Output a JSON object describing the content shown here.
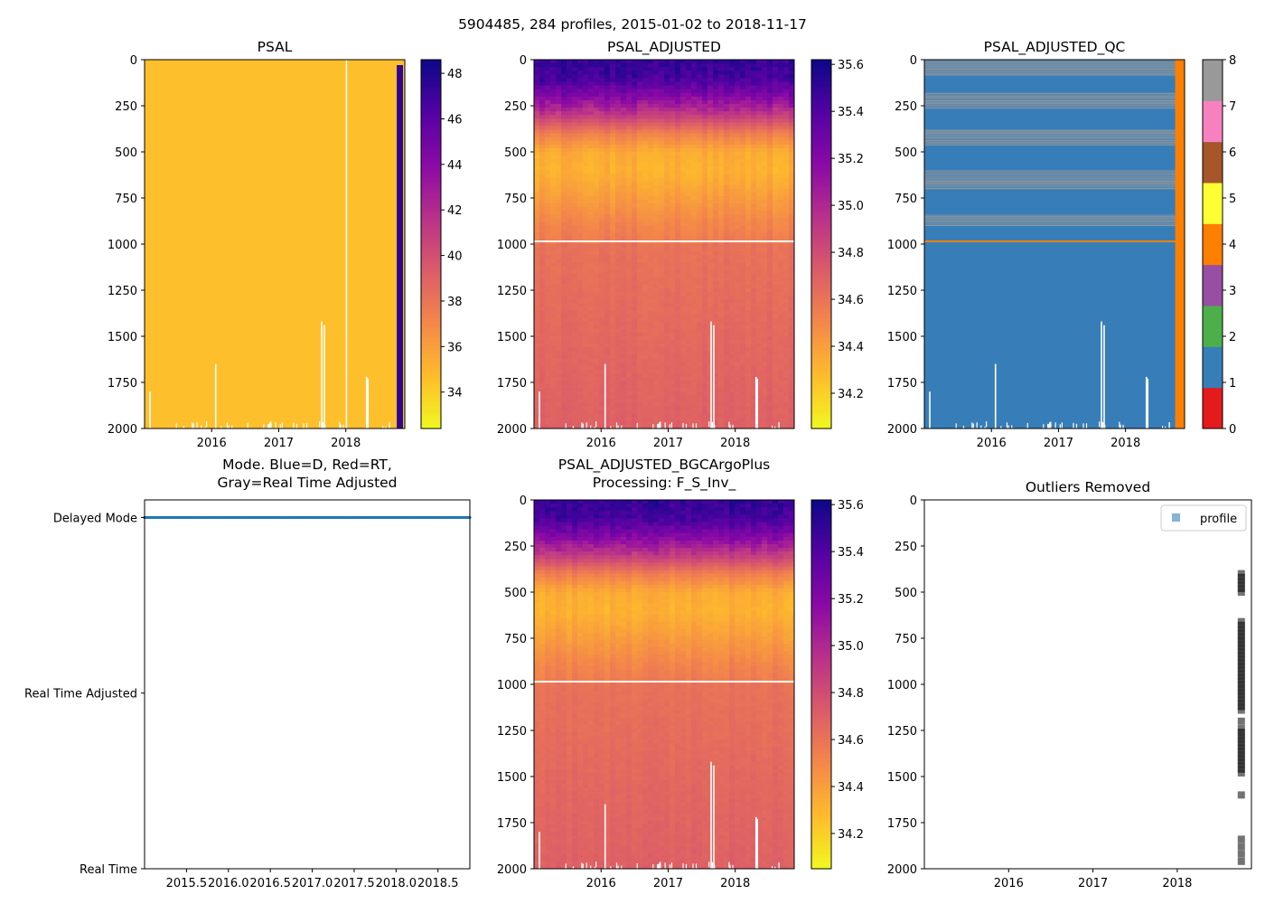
{
  "figure": {
    "suptitle": "5904485, 284 profiles, 2015-01-02 to 2018-11-17"
  },
  "chart_data": [
    {
      "id": "psal",
      "type": "heatmap",
      "title": "PSAL",
      "x_ticks": [
        "2016",
        "2017",
        "2018"
      ],
      "x_tick_values": [
        2016,
        2017,
        2018
      ],
      "xlim": [
        2015.0,
        2018.88
      ],
      "y_ticks": [
        "0",
        "250",
        "500",
        "750",
        "1000",
        "1250",
        "1500",
        "1750",
        "2000"
      ],
      "y_tick_values": [
        0,
        250,
        500,
        750,
        1000,
        1250,
        1500,
        1750,
        2000
      ],
      "ylim": [
        2000,
        0
      ],
      "colorbar": {
        "cmap": "plasma_r",
        "range": [
          32.4,
          48.6
        ],
        "ticks": [
          "34",
          "36",
          "38",
          "40",
          "42",
          "44",
          "46",
          "48"
        ],
        "tick_values": [
          34,
          36,
          38,
          40,
          42,
          44,
          46,
          48
        ]
      },
      "field": {
        "base_value": 34.6,
        "anomaly_value": 47.5,
        "anomaly_start_year": 2018.76
      }
    },
    {
      "id": "psal_adjusted",
      "type": "heatmap",
      "title": "PSAL_ADJUSTED",
      "x_ticks": [
        "2016",
        "2017",
        "2018"
      ],
      "x_tick_values": [
        2016,
        2017,
        2018
      ],
      "xlim": [
        2015.0,
        2018.88
      ],
      "y_ticks": [
        "0",
        "250",
        "500",
        "750",
        "1000",
        "1250",
        "1500",
        "1750",
        "2000"
      ],
      "y_tick_values": [
        0,
        250,
        500,
        750,
        1000,
        1250,
        1500,
        1750,
        2000
      ],
      "ylim": [
        2000,
        0
      ],
      "colorbar": {
        "cmap": "plasma_r",
        "range": [
          34.05,
          35.62
        ],
        "ticks": [
          "34.2",
          "34.4",
          "34.6",
          "34.8",
          "35.0",
          "35.2",
          "35.4",
          "35.6"
        ],
        "tick_values": [
          34.2,
          34.4,
          34.6,
          34.8,
          35.0,
          35.2,
          35.4,
          35.6
        ]
      },
      "depth_profile": [
        [
          0,
          35.5
        ],
        [
          100,
          35.45
        ],
        [
          200,
          35.2
        ],
        [
          300,
          34.9
        ],
        [
          400,
          34.55
        ],
        [
          500,
          34.35
        ],
        [
          600,
          34.32
        ],
        [
          700,
          34.38
        ],
        [
          800,
          34.45
        ],
        [
          900,
          34.52
        ],
        [
          980,
          34.56
        ],
        [
          1000,
          34.61
        ],
        [
          1500,
          34.66
        ],
        [
          2000,
          34.7
        ]
      ],
      "gap_line_depth": 985
    },
    {
      "id": "psal_adjusted_qc",
      "type": "heatmap",
      "title": "PSAL_ADJUSTED_QC",
      "x_ticks": [
        "2016",
        "2017",
        "2018"
      ],
      "x_tick_values": [
        2016,
        2017,
        2018
      ],
      "xlim": [
        2015.0,
        2018.88
      ],
      "y_ticks": [
        "0",
        "250",
        "500",
        "750",
        "1000",
        "1250",
        "1500",
        "1750",
        "2000"
      ],
      "y_tick_values": [
        0,
        250,
        500,
        750,
        1000,
        1250,
        1500,
        1750,
        2000
      ],
      "ylim": [
        2000,
        0
      ],
      "colorbar": {
        "cmap": "qc_flags",
        "range": [
          0,
          8
        ],
        "ticks": [
          "0",
          "1",
          "2",
          "3",
          "4",
          "5",
          "6",
          "7",
          "8"
        ],
        "tick_values": [
          0,
          1,
          2,
          3,
          4,
          5,
          6,
          7,
          8
        ],
        "colors": [
          "#e41a1c",
          "#377eb8",
          "#4daf4a",
          "#984ea3",
          "#ff7f00",
          "#ffff33",
          "#a65628",
          "#f781bf",
          "#999999"
        ]
      },
      "dominant_flag": 1,
      "flag4_line_depth": 985,
      "flag4_start_year": 2018.74,
      "flag8_depth_bands": [
        [
          0,
          80
        ],
        [
          180,
          260
        ],
        [
          380,
          460
        ],
        [
          600,
          700
        ],
        [
          840,
          900
        ]
      ]
    },
    {
      "id": "mode",
      "type": "scatter",
      "title": "Mode. Blue=D, Red=RT,",
      "title_line2": "Gray=Real Time Adjusted",
      "x_ticks": [
        "2015.5",
        "2016.0",
        "2016.5",
        "2017.0",
        "2017.5",
        "2018.0",
        "2018.5"
      ],
      "x_tick_values": [
        2015.5,
        2016.0,
        2016.5,
        2017.0,
        2017.5,
        2018.0,
        2018.5
      ],
      "xlim": [
        2015.0,
        2018.88
      ],
      "y_ticks": [
        "Delayed Mode",
        "Real Time Adjusted",
        "Real Time"
      ],
      "y_tick_values": [
        0,
        1,
        2
      ],
      "ylim": [
        2.0,
        -0.1
      ],
      "series": [
        {
          "name": "Delayed Mode",
          "color": "#1f77b4",
          "x_start": 2015.0,
          "x_end": 2018.88,
          "y": 0,
          "count": 284
        }
      ]
    },
    {
      "id": "psal_adjusted_bgc",
      "type": "heatmap",
      "title": "PSAL_ADJUSTED_BGCArgoPlus",
      "title_line2": "Processing: F_S_Inv_",
      "x_ticks": [
        "2016",
        "2017",
        "2018"
      ],
      "x_tick_values": [
        2016,
        2017,
        2018
      ],
      "xlim": [
        2015.0,
        2018.88
      ],
      "y_ticks": [
        "0",
        "250",
        "500",
        "750",
        "1000",
        "1250",
        "1500",
        "1750",
        "2000"
      ],
      "y_tick_values": [
        0,
        250,
        500,
        750,
        1000,
        1250,
        1500,
        1750,
        2000
      ],
      "ylim": [
        2000,
        0
      ],
      "colorbar": {
        "cmap": "plasma_r",
        "range": [
          34.05,
          35.62
        ],
        "ticks": [
          "34.2",
          "34.4",
          "34.6",
          "34.8",
          "35.0",
          "35.2",
          "35.4",
          "35.6"
        ],
        "tick_values": [
          34.2,
          34.4,
          34.6,
          34.8,
          35.0,
          35.2,
          35.4,
          35.6
        ]
      },
      "gap_line_depth": 985
    },
    {
      "id": "outliers",
      "type": "scatter",
      "title": "Outliers Removed",
      "x_ticks": [
        "2016",
        "2017",
        "2018"
      ],
      "x_tick_values": [
        2016,
        2017,
        2018
      ],
      "xlim": [
        2015.0,
        2018.88
      ],
      "y_ticks": [
        "0",
        "250",
        "500",
        "750",
        "1000",
        "1250",
        "1500",
        "1750",
        "2000"
      ],
      "y_tick_values": [
        0,
        250,
        500,
        750,
        1000,
        1250,
        1500,
        1750,
        2000
      ],
      "ylim": [
        2000,
        0
      ],
      "legend": {
        "label": "profile",
        "loc": "upper right",
        "color": "#1f77b4"
      },
      "series": [
        {
          "name": "profile",
          "x": 2018.76,
          "depths": [
            400,
            420,
            440,
            460,
            480,
            500,
            660,
            680,
            700,
            720,
            740,
            760,
            780,
            800,
            820,
            840,
            860,
            880,
            900,
            920,
            940,
            960,
            980,
            1000,
            1020,
            1040,
            1060,
            1080,
            1100,
            1120,
            1140,
            1200,
            1240,
            1260,
            1280,
            1300,
            1320,
            1340,
            1360,
            1380,
            1400,
            1420,
            1440,
            1460,
            1480,
            1600,
            1840,
            1880,
            1920,
            1960
          ]
        }
      ]
    }
  ]
}
